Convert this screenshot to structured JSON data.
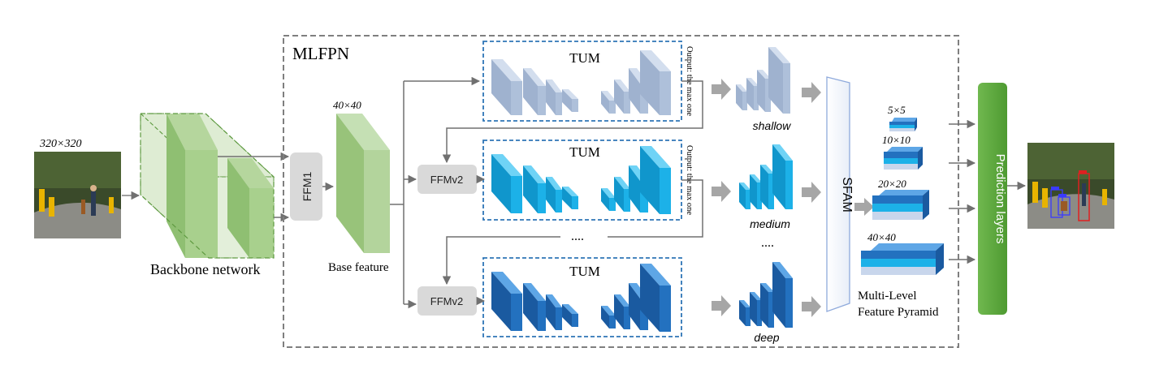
{
  "input_image": {
    "size_label": "320×320"
  },
  "backbone": {
    "label": "Backbone network"
  },
  "ffm1": {
    "label": "FFM1"
  },
  "base_feature": {
    "label": "Base feature",
    "size_label": "40×40"
  },
  "mlfpn": {
    "label": "MLFPN"
  },
  "tums": [
    {
      "label": "TUM",
      "side_note": "Output: the max one",
      "output_label": "shallow",
      "color": "#aec0da"
    },
    {
      "label": "TUM",
      "side_note": "Output: the max one",
      "output_label": "medium",
      "color": "#1cb1e8"
    },
    {
      "label": "TUM",
      "side_note": "",
      "output_label": "deep",
      "color": "#2371bf"
    }
  ],
  "ffmv2": {
    "label": "FFMv2"
  },
  "ellipsis": {
    "middle": "....",
    "outputs": "...."
  },
  "sfam": {
    "label": "SFAM"
  },
  "pyramid": {
    "levels": [
      {
        "size_label": "5×5"
      },
      {
        "size_label": "10×10"
      },
      {
        "size_label": "20×20"
      },
      {
        "size_label": "40×40"
      }
    ],
    "label_line1": "Multi-Level",
    "label_line2": "Feature Pyramid"
  },
  "prediction": {
    "label": "Prediction layers",
    "color": "#62ac45"
  },
  "colors": {
    "backbone_green": "#a8d08d",
    "dashed_border": "#7f7f7f",
    "tum_box_border": "#2e75b6",
    "ffm_gray": "#d9d9d9",
    "arrow": "#808080"
  }
}
